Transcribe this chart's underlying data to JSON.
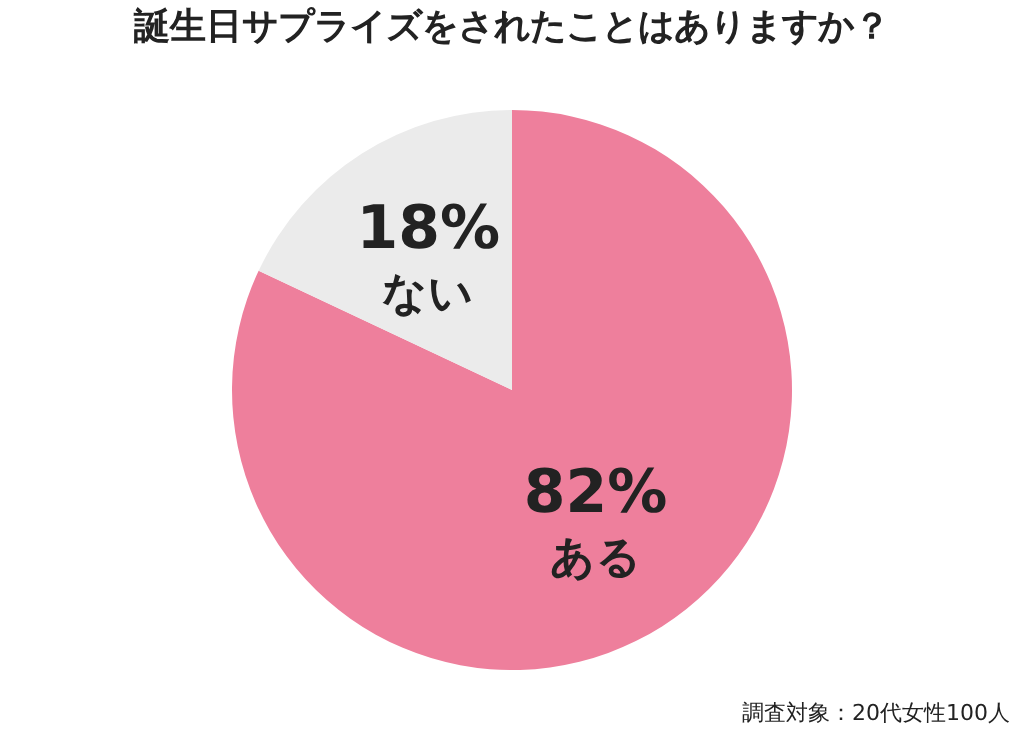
{
  "chart_data": {
    "type": "pie",
    "title": "誕生日サプライズをされたことはありますか？",
    "categories": [
      "ある",
      "ない"
    ],
    "values": [
      82,
      18
    ],
    "value_labels": [
      "82%",
      "18%"
    ],
    "colors": [
      "#ee7f9c",
      "#ebebeb"
    ],
    "annotations": [
      "調査対象：20代女性100人"
    ]
  }
}
